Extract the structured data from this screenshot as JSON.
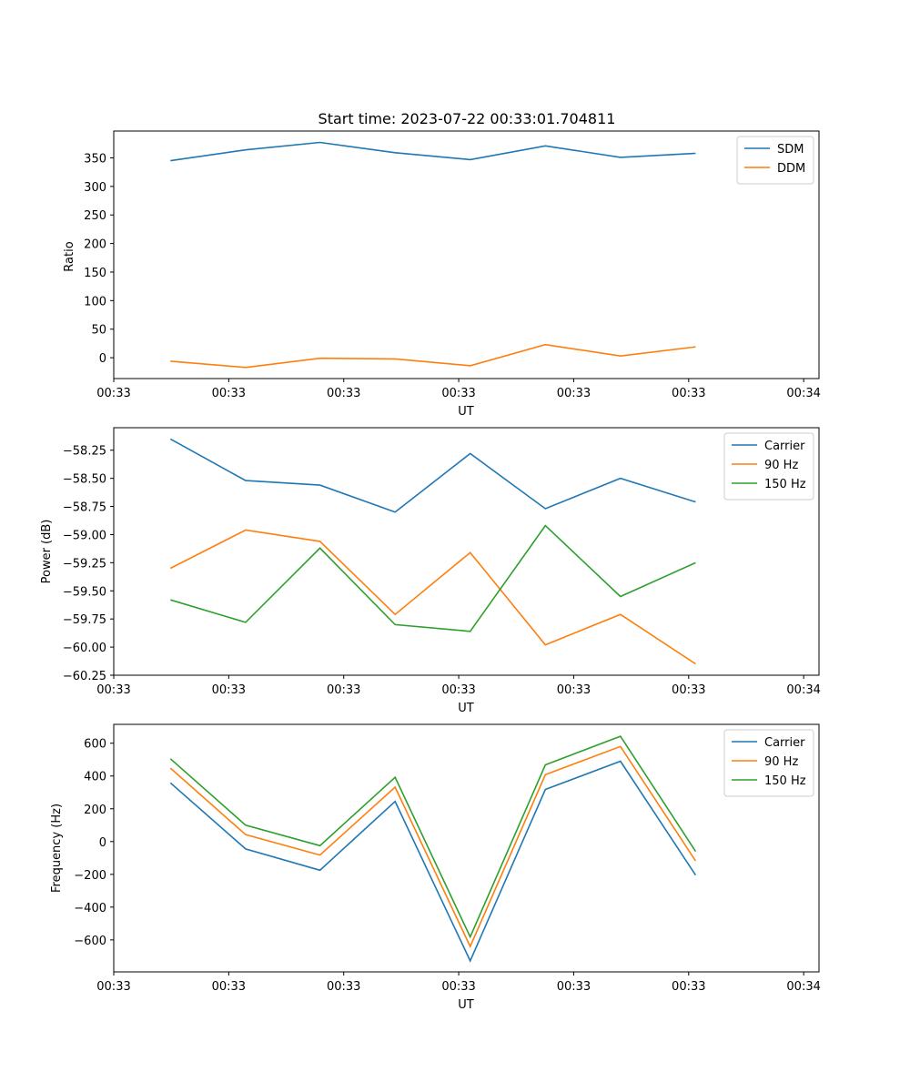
{
  "chart_data": [
    {
      "type": "line",
      "title": "Start time: 2023-07-22 00:33:01.704811",
      "xlabel": "UT",
      "ylabel": "Ratio",
      "xlim": [
        0,
        9.2
      ],
      "ylim": [
        -36.5,
        397
      ],
      "xtick_positions": [
        0,
        1.5,
        3,
        4.5,
        6,
        7.5,
        9
      ],
      "xtick_labels": [
        "00:33",
        "00:33",
        "00:33",
        "00:33",
        "00:33",
        "00:33",
        "00:34"
      ],
      "yticks": [
        0,
        50,
        100,
        150,
        200,
        250,
        300,
        350
      ],
      "ytick_labels": [
        "0",
        "50",
        "100",
        "150",
        "200",
        "250",
        "300",
        "350"
      ],
      "legend_position": "top-right",
      "x": [
        0.74,
        1.72,
        2.69,
        3.67,
        4.65,
        5.63,
        6.61,
        7.59
      ],
      "series": [
        {
          "name": "SDM",
          "color": "#1f77b4",
          "values": [
            345,
            364,
            377,
            359,
            347,
            371,
            351,
            358
          ]
        },
        {
          "name": "DDM",
          "color": "#ff7f0e",
          "values": [
            -6,
            -17,
            -1,
            -2,
            -14,
            23,
            3,
            19
          ]
        }
      ]
    },
    {
      "type": "line",
      "title": "",
      "xlabel": "UT",
      "ylabel": "Power (dB)",
      "xlim": [
        0,
        9.2
      ],
      "ylim": [
        -60.25,
        -58.05
      ],
      "xtick_positions": [
        0,
        1.5,
        3,
        4.5,
        6,
        7.5,
        9
      ],
      "xtick_labels": [
        "00:33",
        "00:33",
        "00:33",
        "00:33",
        "00:33",
        "00:33",
        "00:34"
      ],
      "yticks": [
        -60.25,
        -60.0,
        -59.75,
        -59.5,
        -59.25,
        -59.0,
        -58.75,
        -58.5,
        -58.25
      ],
      "ytick_labels": [
        "−60.25",
        "−60.00",
        "−59.75",
        "−59.50",
        "−59.25",
        "−59.00",
        "−58.75",
        "−58.50",
        "−58.25"
      ],
      "legend_position": "top-right",
      "x": [
        0.74,
        1.72,
        2.69,
        3.67,
        4.65,
        5.63,
        6.61,
        7.59
      ],
      "series": [
        {
          "name": "Carrier",
          "color": "#1f77b4",
          "values": [
            -58.15,
            -58.52,
            -58.56,
            -58.8,
            -58.28,
            -58.77,
            -58.5,
            -58.71
          ]
        },
        {
          "name": "90 Hz",
          "color": "#ff7f0e",
          "values": [
            -59.3,
            -58.96,
            -59.06,
            -59.71,
            -59.16,
            -59.98,
            -59.71,
            -60.15
          ]
        },
        {
          "name": "150 Hz",
          "color": "#2ca02c",
          "values": [
            -59.58,
            -59.78,
            -59.12,
            -59.8,
            -59.86,
            -58.92,
            -59.55,
            -59.25
          ]
        }
      ]
    },
    {
      "type": "line",
      "title": "",
      "xlabel": "UT",
      "ylabel": "Frequency (Hz)",
      "xlim": [
        0,
        9.2
      ],
      "ylim": [
        -795,
        715
      ],
      "xtick_positions": [
        0,
        1.5,
        3,
        4.5,
        6,
        7.5,
        9
      ],
      "xtick_labels": [
        "00:33",
        "00:33",
        "00:33",
        "00:33",
        "00:33",
        "00:33",
        "00:34"
      ],
      "yticks": [
        -600,
        -400,
        -200,
        0,
        200,
        400,
        600
      ],
      "ytick_labels": [
        "−600",
        "−400",
        "−200",
        "0",
        "200",
        "400",
        "600"
      ],
      "legend_position": "top-right",
      "x": [
        0.74,
        1.72,
        2.69,
        3.67,
        4.65,
        5.63,
        6.61,
        7.59
      ],
      "series": [
        {
          "name": "Carrier",
          "color": "#1f77b4",
          "values": [
            358,
            -45,
            -175,
            245,
            -728,
            318,
            490,
            -205
          ]
        },
        {
          "name": "90 Hz",
          "color": "#ff7f0e",
          "values": [
            448,
            42,
            -82,
            332,
            -640,
            408,
            580,
            -118
          ]
        },
        {
          "name": "150 Hz",
          "color": "#2ca02c",
          "values": [
            505,
            100,
            -25,
            392,
            -582,
            468,
            642,
            -60
          ]
        }
      ]
    }
  ]
}
